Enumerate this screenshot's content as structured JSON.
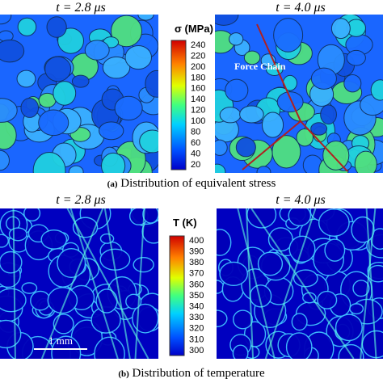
{
  "panel_a": {
    "frames": [
      {
        "title": "t = 2.8 μs"
      },
      {
        "title": "t = 4.0 μs"
      }
    ],
    "annotation": "Force Chain",
    "colorbar": {
      "label": "σ (MPa)",
      "ticks": [
        240,
        220,
        200,
        180,
        160,
        140,
        120,
        100,
        80,
        60,
        40,
        20
      ]
    },
    "caption": {
      "label": "(a)",
      "text": "Distribution of equivalent stress"
    }
  },
  "panel_b": {
    "frames": [
      {
        "title": "t = 2.8 μs"
      },
      {
        "title": "t = 4.0 μs"
      }
    ],
    "scale_bar": "1 mm",
    "colorbar": {
      "label": "T (K)",
      "ticks": [
        400,
        390,
        380,
        370,
        360,
        350,
        340,
        330,
        320,
        310,
        300
      ]
    },
    "caption": {
      "label": "(b)",
      "text": "Distribution of temperature"
    }
  }
}
